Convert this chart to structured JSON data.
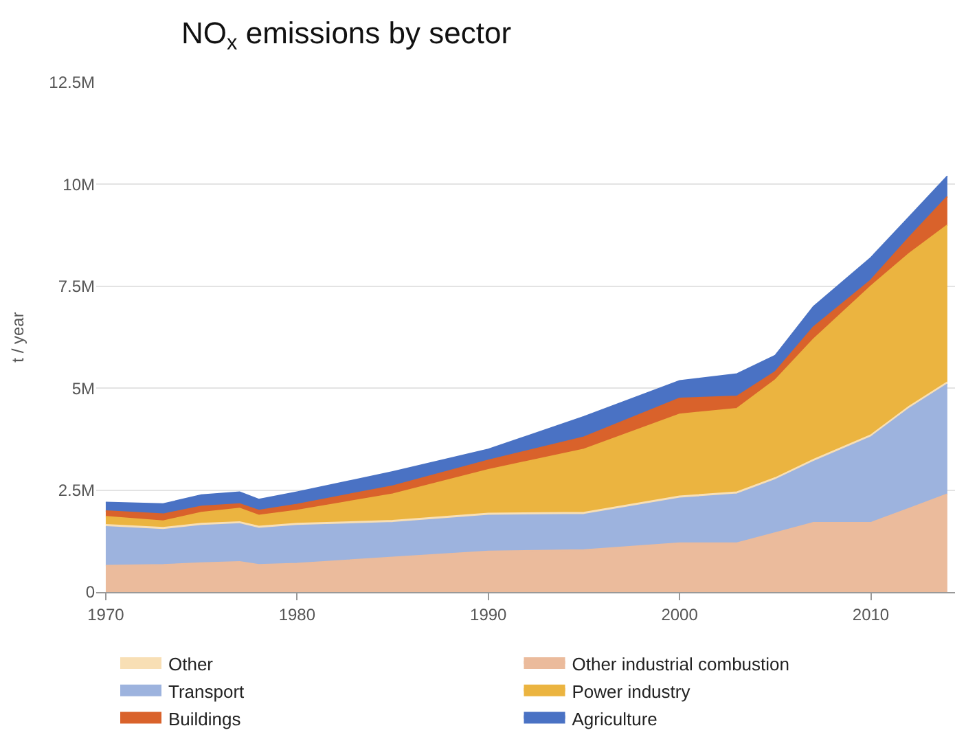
{
  "chart_data": {
    "type": "area",
    "title": "NO$_{x}$ emissions by sector",
    "ylabel": "t / year",
    "stacked": true,
    "x": [
      1970,
      1973,
      1975,
      1977,
      1978,
      1980,
      1985,
      1990,
      1995,
      2000,
      2003,
      2005,
      2007,
      2010,
      2012,
      2014
    ],
    "series": [
      {
        "name": "Other industrial combustion",
        "color": "#ebbb9c",
        "values": [
          650000,
          670000,
          710000,
          740000,
          670000,
          700000,
          850000,
          1000000,
          1030000,
          1200000,
          1200000,
          1450000,
          1700000,
          1700000,
          2050000,
          2400000
        ]
      },
      {
        "name": "Transport",
        "color": "#9db3de",
        "values": [
          950000,
          860000,
          920000,
          930000,
          890000,
          930000,
          850000,
          880000,
          870000,
          1100000,
          1200000,
          1300000,
          1500000,
          2100000,
          2450000,
          2700000
        ]
      },
      {
        "name": "Other",
        "color": "#f8dfb5",
        "values": [
          50000,
          50000,
          50000,
          50000,
          50000,
          50000,
          50000,
          50000,
          50000,
          50000,
          50000,
          50000,
          50000,
          50000,
          50000,
          50000
        ]
      },
      {
        "name": "Power industry",
        "color": "#ebb440",
        "values": [
          200000,
          160000,
          270000,
          330000,
          270000,
          320000,
          650000,
          1070000,
          1550000,
          2010000,
          2050000,
          2400000,
          2950000,
          3650000,
          3750000,
          3850000
        ]
      },
      {
        "name": "Buildings",
        "color": "#d9622b",
        "values": [
          140000,
          170000,
          150000,
          110000,
          120000,
          150000,
          200000,
          230000,
          300000,
          390000,
          300000,
          200000,
          300000,
          150000,
          400000,
          700000
        ]
      },
      {
        "name": "Agriculture",
        "color": "#4a72c4",
        "values": [
          210000,
          250000,
          280000,
          290000,
          270000,
          300000,
          350000,
          270000,
          500000,
          430000,
          550000,
          400000,
          500000,
          550000,
          500000,
          500000
        ]
      }
    ],
    "xlim": [
      1969.5,
      2014.4
    ],
    "xticks": [
      1970,
      1980,
      1990,
      2000,
      2010
    ],
    "ylim": [
      0,
      12500000
    ],
    "yticks": [
      {
        "value": 0,
        "label": "0"
      },
      {
        "value": 2500000,
        "label": "2.5M"
      },
      {
        "value": 5000000,
        "label": "5M"
      },
      {
        "value": 7500000,
        "label": "7.5M"
      },
      {
        "value": 10000000,
        "label": "10M"
      },
      {
        "value": 12500000,
        "label": "12.5M"
      }
    ],
    "grid": "y",
    "legend": "bottom",
    "marker": "none"
  }
}
